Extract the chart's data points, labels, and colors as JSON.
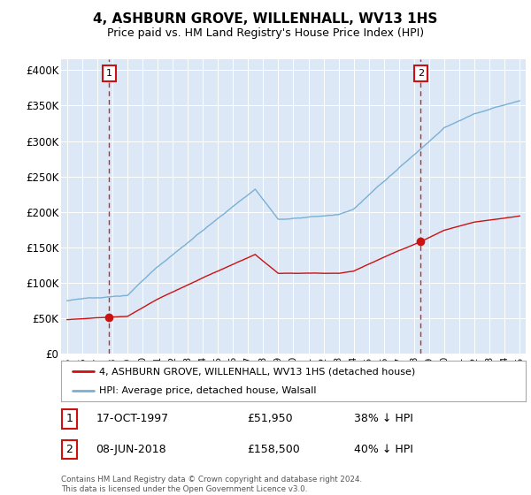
{
  "title": "4, ASHBURN GROVE, WILLENHALL, WV13 1HS",
  "subtitle": "Price paid vs. HM Land Registry's House Price Index (HPI)",
  "hpi_color": "#7ab0d4",
  "price_color": "#cc1111",
  "background_color": "#ffffff",
  "plot_bg_color": "#dce8f5",
  "legend_label_price": "4, ASHBURN GROVE, WILLENHALL, WV13 1HS (detached house)",
  "legend_label_hpi": "HPI: Average price, detached house, Walsall",
  "sale1_date": "17-OCT-1997",
  "sale1_price": 51950,
  "sale1_pct": "38% ↓ HPI",
  "sale2_date": "08-JUN-2018",
  "sale2_price": 158500,
  "sale2_pct": "40% ↓ HPI",
  "footer": "Contains HM Land Registry data © Crown copyright and database right 2024.\nThis data is licensed under the Open Government Licence v3.0.",
  "sale1_year": 1997.79,
  "sale2_year": 2018.44,
  "yticks": [
    0,
    50000,
    100000,
    150000,
    200000,
    250000,
    300000,
    350000,
    400000
  ],
  "ytick_labels": [
    "£0",
    "£50K",
    "£100K",
    "£150K",
    "£200K",
    "£250K",
    "£300K",
    "£350K",
    "£400K"
  ]
}
